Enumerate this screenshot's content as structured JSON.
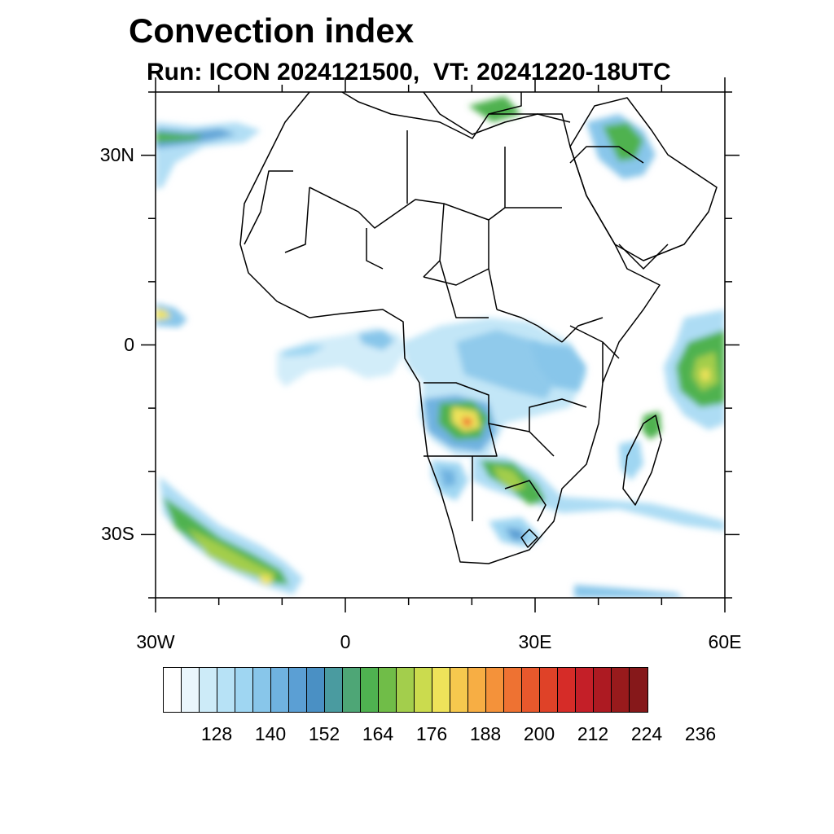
{
  "title": "Convection index",
  "subtitle": "Run: ICON 2024121500,  VT: 20241220-18UTC",
  "map": {
    "region": "Africa",
    "lon_range": [
      -30,
      60
    ],
    "lat_range": [
      -40,
      40
    ],
    "lat_ticks": [
      {
        "lat": 30,
        "label": "30N"
      },
      {
        "lat": 0,
        "label": "0"
      },
      {
        "lat": -30,
        "label": "30S"
      }
    ],
    "lon_ticks": [
      {
        "lon": -30,
        "label": "30W"
      },
      {
        "lon": 0,
        "label": "0"
      },
      {
        "lon": 30,
        "label": "30E"
      },
      {
        "lon": 60,
        "label": "60E"
      }
    ],
    "border_color": "#000000"
  },
  "colorbar": {
    "colors": [
      "#ffffff",
      "#eaf6fc",
      "#cdebf8",
      "#b7e2f6",
      "#9fd6f2",
      "#88c6ea",
      "#6fb2e0",
      "#5b9fd4",
      "#4a90c4",
      "#4a9ba0",
      "#4ea676",
      "#4fb250",
      "#70bd48",
      "#a3ce4c",
      "#cbdb4e",
      "#efe35a",
      "#f6c84e",
      "#f7ae44",
      "#f4923a",
      "#ee7232",
      "#e8582c",
      "#df4228",
      "#d62c28",
      "#c41f28",
      "#ad1a22",
      "#981a1c",
      "#86181a"
    ],
    "labels": [
      "128",
      "140",
      "152",
      "164",
      "176",
      "188",
      "200",
      "212",
      "224",
      "236"
    ]
  }
}
